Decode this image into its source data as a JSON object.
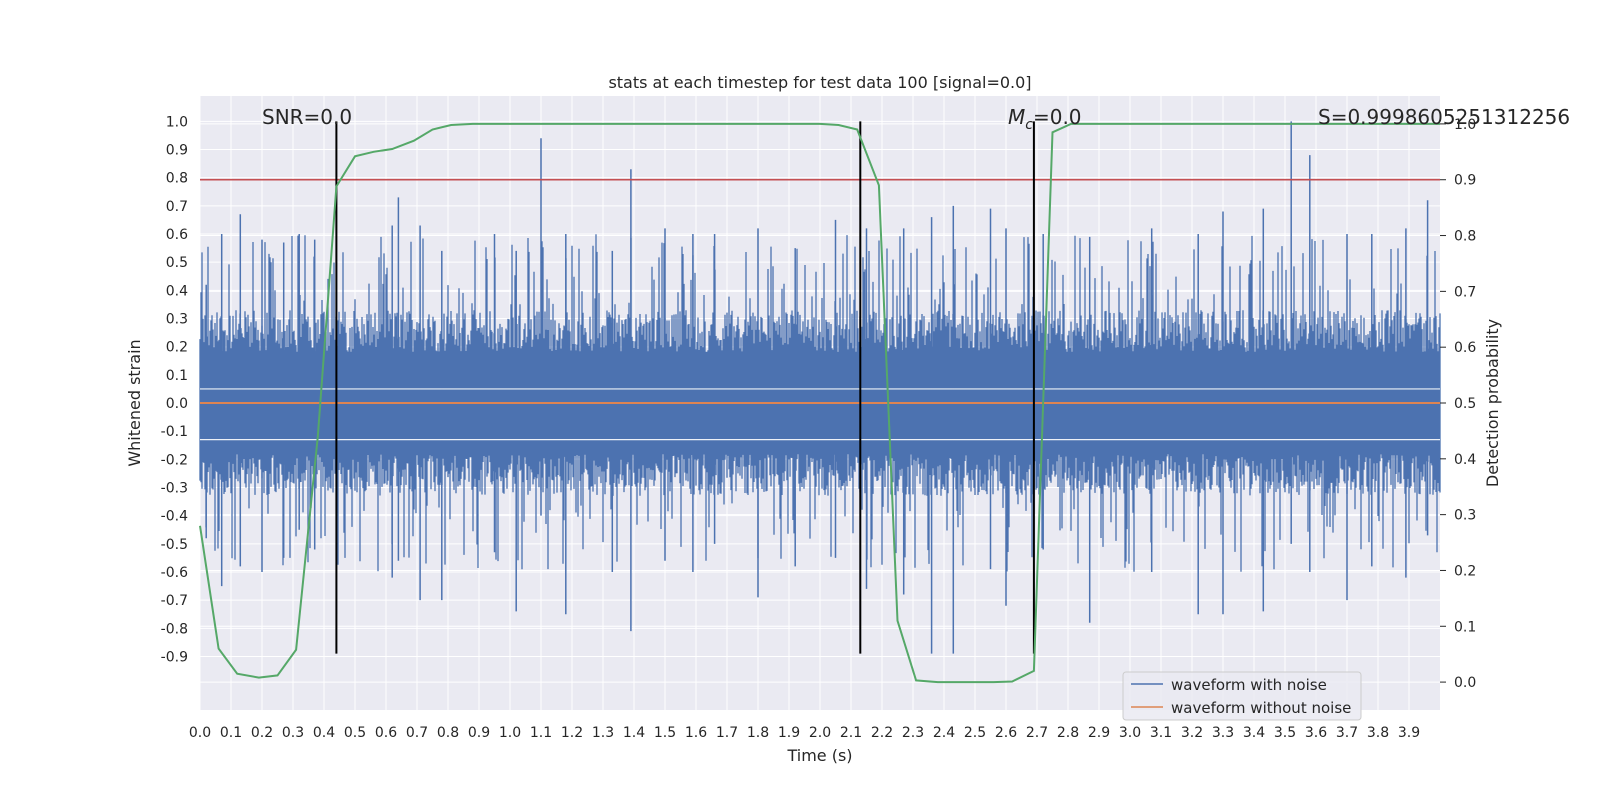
{
  "chart_data": {
    "type": "line",
    "title": "stats at each timestep for test data 100 [signal=0.0]",
    "xlabel": "Time (s)",
    "ylabel": "Whitened strain",
    "y2label": "Detection probability",
    "xlim": [
      0.0,
      4.0
    ],
    "ylim": [
      -1.09,
      1.09
    ],
    "y2lim": [
      -0.05,
      1.05
    ],
    "xticks": [
      "0.0",
      "0.1",
      "0.2",
      "0.3",
      "0.4",
      "0.5",
      "0.6",
      "0.7",
      "0.8",
      "0.9",
      "1.0",
      "1.1",
      "1.2",
      "1.3",
      "1.4",
      "1.5",
      "1.6",
      "1.7",
      "1.8",
      "1.9",
      "2.0",
      "2.1",
      "2.2",
      "2.3",
      "2.4",
      "2.5",
      "2.6",
      "2.7",
      "2.8",
      "2.9",
      "3.0",
      "3.1",
      "3.2",
      "3.3",
      "3.4",
      "3.5",
      "3.6",
      "3.7",
      "3.8",
      "3.9"
    ],
    "yticks": [
      "1.0",
      "0.9",
      "0.8",
      "0.7",
      "0.6",
      "0.5",
      "0.4",
      "0.3",
      "0.2",
      "0.1",
      "0.0",
      "-0.1",
      "-0.2",
      "-0.3",
      "-0.4",
      "-0.5",
      "-0.6",
      "-0.7",
      "-0.8",
      "-0.9"
    ],
    "y2ticks": [
      "1.0",
      "0.9",
      "0.8",
      "0.7",
      "0.6",
      "0.5",
      "0.4",
      "0.3",
      "0.2",
      "0.1",
      "0.0"
    ],
    "annotations": {
      "snr": "SNR=0.0",
      "mc_prefix": "M",
      "mc_sub": "c",
      "mc_suffix": "=0.0",
      "s": "S=0.999860525131225​6"
    },
    "noisy_series": {
      "name": "waveform with noise",
      "color": "#4c72b0",
      "baseline_range": [
        -0.33,
        0.33
      ],
      "spikes": [
        {
          "x": 0.02,
          "top": 0.42,
          "bottom": -0.48
        },
        {
          "x": 0.07,
          "top": 0.6,
          "bottom": -0.65
        },
        {
          "x": 0.13,
          "top": 0.67,
          "bottom": -0.58
        },
        {
          "x": 0.2,
          "top": 0.58,
          "bottom": -0.6
        },
        {
          "x": 0.27,
          "top": 0.57,
          "bottom": -0.55
        },
        {
          "x": 0.32,
          "top": 0.6,
          "bottom": -0.45
        },
        {
          "x": 0.37,
          "top": 0.58,
          "bottom": -0.52
        },
        {
          "x": 0.44,
          "top": 0.5,
          "bottom": -0.75
        },
        {
          "x": 0.62,
          "top": 0.63,
          "bottom": -0.62
        },
        {
          "x": 0.64,
          "top": 0.73,
          "bottom": -0.56
        },
        {
          "x": 0.71,
          "top": 0.63,
          "bottom": -0.7
        },
        {
          "x": 0.78,
          "top": 0.54,
          "bottom": -0.7
        },
        {
          "x": 0.95,
          "top": 0.6,
          "bottom": -0.53
        },
        {
          "x": 1.02,
          "top": 0.54,
          "bottom": -0.74
        },
        {
          "x": 1.1,
          "top": 0.94,
          "bottom": -0.4
        },
        {
          "x": 1.18,
          "top": 0.6,
          "bottom": -0.75
        },
        {
          "x": 1.33,
          "top": 0.54,
          "bottom": -0.6
        },
        {
          "x": 1.39,
          "top": 0.83,
          "bottom": -0.81
        },
        {
          "x": 1.5,
          "top": 0.62,
          "bottom": -0.56
        },
        {
          "x": 1.59,
          "top": 0.6,
          "bottom": -0.6
        },
        {
          "x": 1.66,
          "top": 0.6,
          "bottom": -0.5
        },
        {
          "x": 1.8,
          "top": 0.62,
          "bottom": -0.69
        },
        {
          "x": 1.92,
          "top": 0.55,
          "bottom": -0.58
        },
        {
          "x": 2.05,
          "top": 0.65,
          "bottom": -0.55
        },
        {
          "x": 2.15,
          "top": 0.62,
          "bottom": -0.66
        },
        {
          "x": 2.27,
          "top": 0.62,
          "bottom": -0.68
        },
        {
          "x": 2.36,
          "top": 0.66,
          "bottom": -0.89
        },
        {
          "x": 2.43,
          "top": 0.7,
          "bottom": -0.89
        },
        {
          "x": 2.55,
          "top": 0.69,
          "bottom": -0.59
        },
        {
          "x": 2.6,
          "top": 0.62,
          "bottom": -0.72
        },
        {
          "x": 2.72,
          "top": 0.6,
          "bottom": -0.52
        },
        {
          "x": 2.87,
          "top": 0.59,
          "bottom": -0.78
        },
        {
          "x": 3.07,
          "top": 0.62,
          "bottom": -0.6
        },
        {
          "x": 3.22,
          "top": 0.6,
          "bottom": -0.75
        },
        {
          "x": 3.3,
          "top": 0.68,
          "bottom": -0.75
        },
        {
          "x": 3.43,
          "top": 0.69,
          "bottom": -0.74
        },
        {
          "x": 3.52,
          "top": 1.0,
          "bottom": -0.5
        },
        {
          "x": 3.58,
          "top": 0.88,
          "bottom": -0.6
        },
        {
          "x": 3.7,
          "top": 0.6,
          "bottom": -0.7
        },
        {
          "x": 3.78,
          "top": 0.6,
          "bottom": -0.58
        },
        {
          "x": 3.89,
          "top": 0.62,
          "bottom": -0.62
        },
        {
          "x": 3.96,
          "top": 0.72,
          "bottom": -0.47
        }
      ]
    },
    "clean_series": {
      "name": "waveform without noise",
      "color": "#dd8452",
      "value": 0.0
    },
    "probability_series": {
      "name": "Detection probability",
      "color": "#55a868",
      "x": [
        0.0,
        0.06,
        0.12,
        0.19,
        0.25,
        0.31,
        0.38,
        0.44,
        0.5,
        0.56,
        0.62,
        0.69,
        0.75,
        0.81,
        0.88,
        0.94,
        1.0,
        1.5,
        2.0,
        2.06,
        2.12,
        2.19,
        2.25,
        2.31,
        2.38,
        2.44,
        2.5,
        2.56,
        2.62,
        2.69,
        2.75,
        2.81,
        3.0,
        3.5,
        4.0
      ],
      "y": [
        0.28,
        0.06,
        0.015,
        0.008,
        0.012,
        0.058,
        0.44,
        0.888,
        0.942,
        0.95,
        0.955,
        0.97,
        0.99,
        0.998,
        1.0,
        1.0,
        1.0,
        1.0,
        1.0,
        0.998,
        0.99,
        0.89,
        0.11,
        0.003,
        0.0,
        0.0,
        0.0,
        0.0,
        0.001,
        0.02,
        0.985,
        1.0,
        1.0,
        1.0,
        1.0
      ]
    },
    "threshold_line": {
      "value": 0.9,
      "axis": "right",
      "color": "#c44e52"
    },
    "vertical_markers": [
      {
        "x": 0.44,
        "y_from": -0.89,
        "y_to": 1.0
      },
      {
        "x": 2.13,
        "y_from": -0.89,
        "y_to": 1.0
      },
      {
        "x": 2.69,
        "y_from": -0.89,
        "y_to": 1.0
      }
    ],
    "legend": {
      "position": "lower-right",
      "entries": [
        {
          "label": "waveform with noise",
          "color": "#4c72b0"
        },
        {
          "label": "waveform without noise",
          "color": "#dd8452"
        }
      ]
    },
    "grid": true
  }
}
